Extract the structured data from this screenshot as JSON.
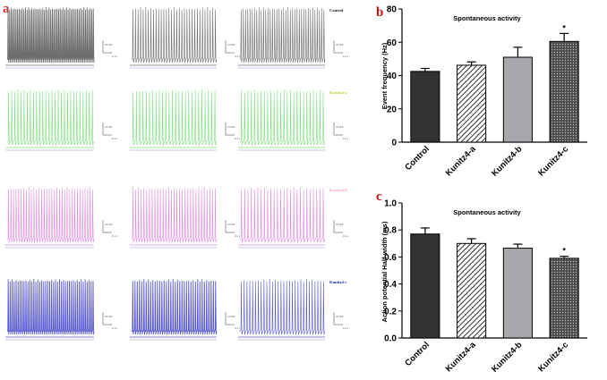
{
  "panels": {
    "a": "a",
    "b": "b",
    "c": "c"
  },
  "traces": {
    "rows": [
      {
        "label": "Control",
        "color": "#6e6e6e",
        "label_color": "#111111"
      },
      {
        "label": "Kunitz4-a",
        "color": "#7fdf7f",
        "label_color": "#c9c93a"
      },
      {
        "label": "Kunitz4-b",
        "color": "#e08ae0",
        "label_color": "#f0a0c0"
      },
      {
        "label": "Kunitz4-c",
        "color": "#5a5ad0",
        "label_color": "#2020b0"
      }
    ],
    "scale_text": {
      "voltage": "10 mV",
      "time": "0.1 s"
    }
  },
  "chart_data": [
    {
      "type": "bar",
      "title": "Spontaneous activity",
      "categories": [
        "Control",
        "Kunitz4-a",
        "Kunitz4-b",
        "Kunitz4-c"
      ],
      "values": [
        42.5,
        46.2,
        51.0,
        60.5
      ],
      "errors": [
        1.8,
        2.0,
        6.0,
        4.8
      ],
      "significance": [
        "",
        "",
        "",
        "*"
      ],
      "fills": [
        "solid-dark",
        "hatch",
        "solid-gray",
        "dots"
      ],
      "ylabel": "Event frequency (Hz)",
      "xlabel": "",
      "ylim": [
        0,
        80
      ],
      "yticks": [
        0,
        20,
        40,
        60,
        80
      ]
    },
    {
      "type": "bar",
      "title": "Spontaneous activity",
      "categories": [
        "Control",
        "Kunitz4-a",
        "Kunitz4-b",
        "Kunitz4-c"
      ],
      "values": [
        0.77,
        0.7,
        0.665,
        0.59
      ],
      "errors": [
        0.045,
        0.035,
        0.03,
        0.015
      ],
      "significance": [
        "",
        "",
        "",
        "*"
      ],
      "fills": [
        "solid-dark",
        "hatch",
        "solid-gray",
        "dots"
      ],
      "ylabel": "Action potential Half-width (ms)",
      "xlabel": "",
      "ylim": [
        0,
        1.0
      ],
      "yticks": [
        "0.0",
        "0.2",
        "0.4",
        "0.6",
        "0.8",
        "1.0"
      ]
    }
  ]
}
